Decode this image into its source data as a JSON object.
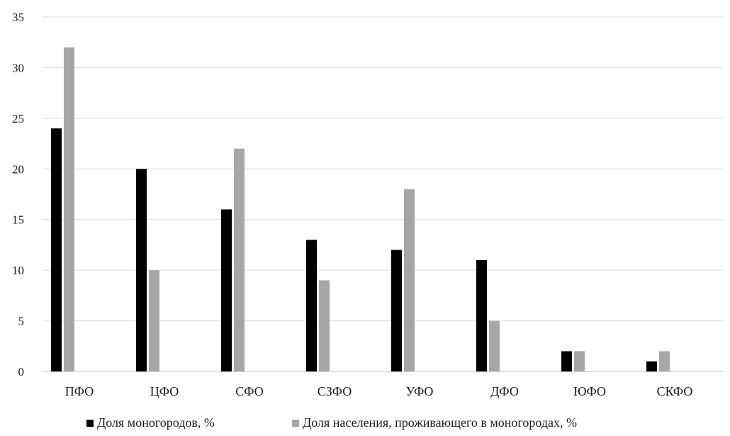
{
  "chart_data": {
    "type": "bar",
    "title": "",
    "xlabel": "",
    "ylabel": "",
    "categories": [
      "ПФО",
      "ЦФО",
      "СФО",
      "СЗФО",
      "УФО",
      "ДФО",
      "ЮФО",
      "СКФО"
    ],
    "series": [
      {
        "name": "Доля моногородов, %",
        "color": "#000000",
        "values": [
          24,
          20,
          16,
          13,
          12,
          11,
          2,
          1
        ]
      },
      {
        "name": "Доля населения, проживающего в моногородах, %",
        "color": "#a6a6a6",
        "values": [
          32,
          10,
          22,
          9,
          18,
          5,
          2,
          2
        ]
      }
    ],
    "ylim": [
      0,
      35
    ],
    "yticks": [
      0,
      5,
      10,
      15,
      20,
      25,
      30,
      35
    ],
    "grid": true,
    "legend_position": "bottom"
  }
}
